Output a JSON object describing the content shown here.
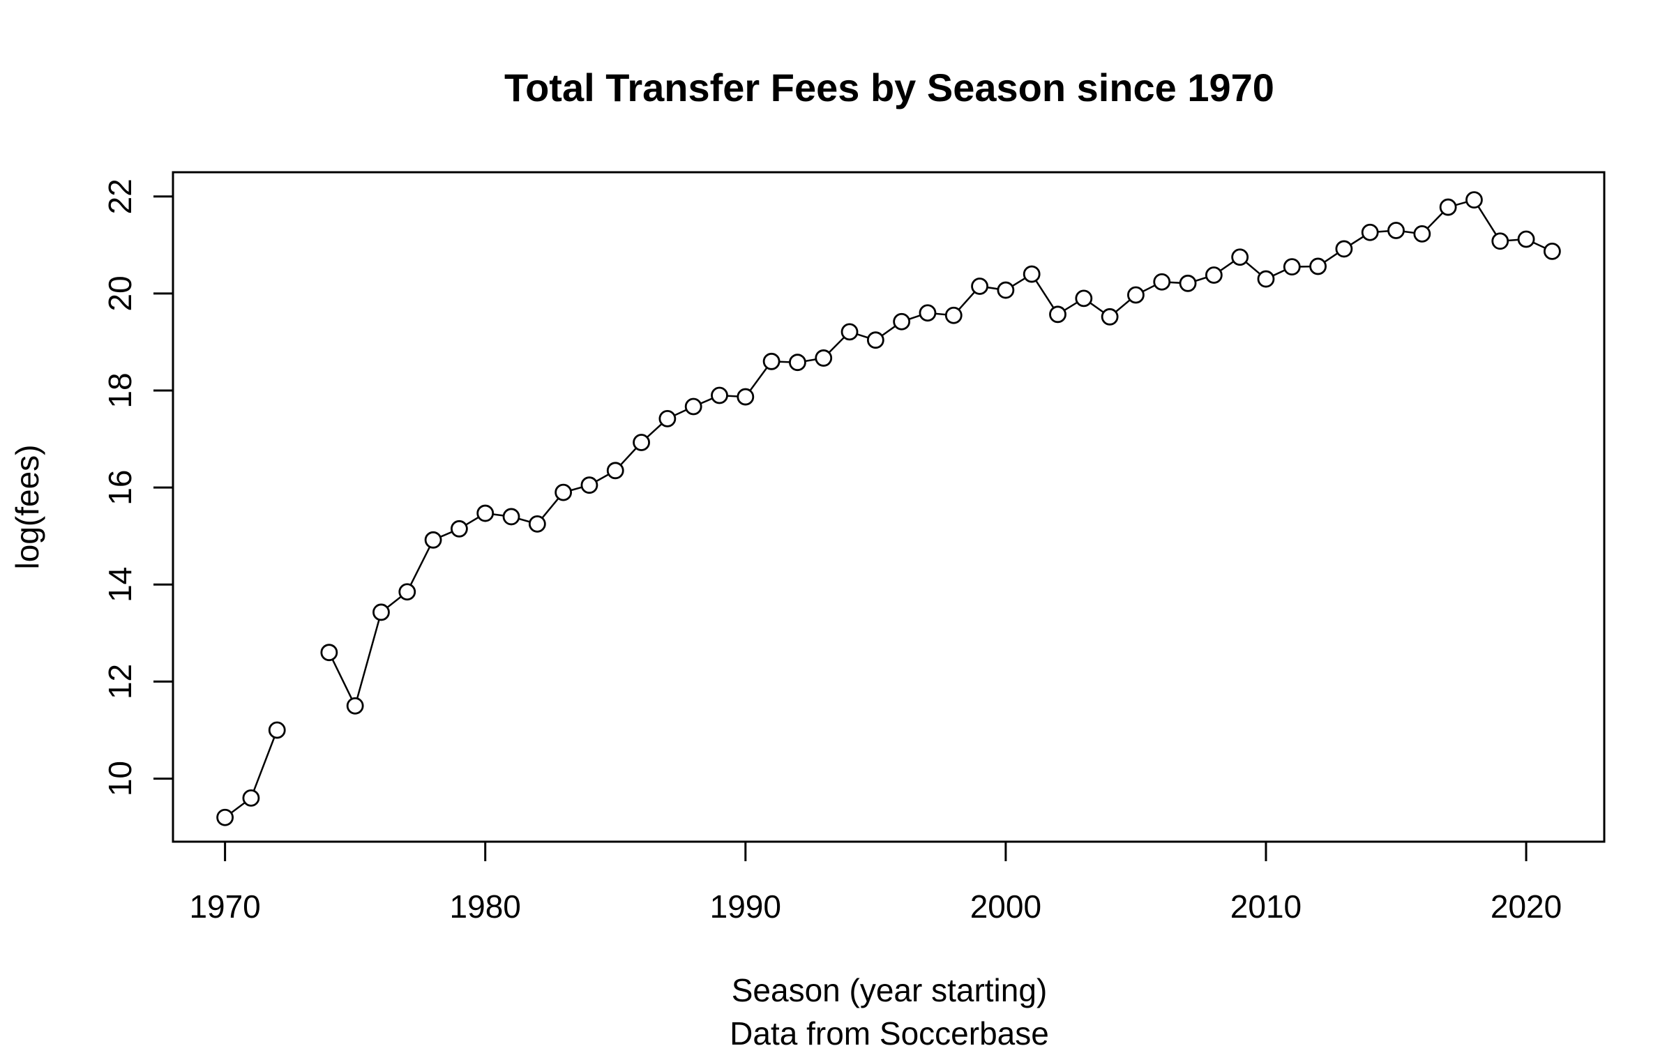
{
  "chart_data": {
    "type": "line",
    "title": "Total Transfer Fees by Season since 1970",
    "xlabel": "Season (year starting)",
    "xlabel_sub": "Data from Soccerbase",
    "ylabel": "log(fees)",
    "xlim": [
      1968,
      2023
    ],
    "ylim": [
      8.7,
      22.5
    ],
    "x_ticks": [
      1970,
      1980,
      1990,
      2000,
      2010,
      2020
    ],
    "y_ticks": [
      10,
      12,
      14,
      16,
      18,
      20,
      22
    ],
    "grid": false,
    "legend": "none",
    "markers": "open-circle",
    "series": [
      {
        "x": [
          1970,
          1971,
          1972,
          1973,
          1974,
          1975,
          1976,
          1977,
          1978,
          1979,
          1980,
          1981,
          1982,
          1983,
          1984,
          1985,
          1986,
          1987,
          1988,
          1989,
          1990,
          1991,
          1992,
          1993,
          1994,
          1995,
          1996,
          1997,
          1998,
          1999,
          2000,
          2001,
          2002,
          2003,
          2004,
          2005,
          2006,
          2007,
          2008,
          2009,
          2010,
          2011,
          2012,
          2013,
          2014,
          2015,
          2016,
          2017,
          2018,
          2019,
          2020,
          2021
        ],
        "values": [
          9.2,
          9.6,
          11.0,
          null,
          12.6,
          11.5,
          13.43,
          13.85,
          14.92,
          15.15,
          15.47,
          15.4,
          15.25,
          15.9,
          16.05,
          16.35,
          16.93,
          17.42,
          17.67,
          17.9,
          17.87,
          18.6,
          18.58,
          18.67,
          19.21,
          19.04,
          19.42,
          19.6,
          19.55,
          20.15,
          20.07,
          20.4,
          19.57,
          19.9,
          19.52,
          19.97,
          20.24,
          20.21,
          20.38,
          20.75,
          20.3,
          20.55,
          20.56,
          20.92,
          21.26,
          21.3,
          21.23,
          21.78,
          21.93,
          21.08,
          21.12,
          20.87
        ]
      }
    ]
  }
}
